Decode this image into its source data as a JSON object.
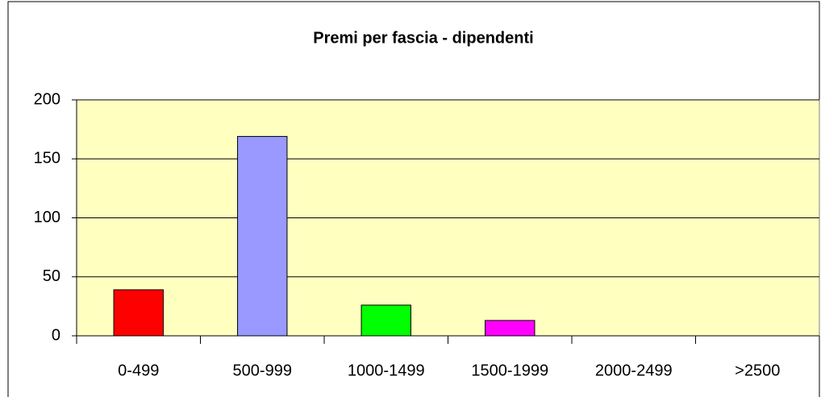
{
  "chart_data": {
    "type": "bar",
    "title": "Premi per fascia - dipendenti",
    "categories": [
      "0-499",
      "500-999",
      "1000-1499",
      "1500-1999",
      "2000-2499",
      ">2500"
    ],
    "values": [
      39,
      169,
      26,
      13,
      0,
      0
    ],
    "colors": [
      "#ff0000",
      "#9999ff",
      "#00ff00",
      "#ff00ff",
      "#ffff00",
      "#00ffff"
    ],
    "ylim": [
      0,
      200
    ],
    "yticks": [
      0,
      50,
      100,
      150,
      200
    ],
    "grid": true
  }
}
